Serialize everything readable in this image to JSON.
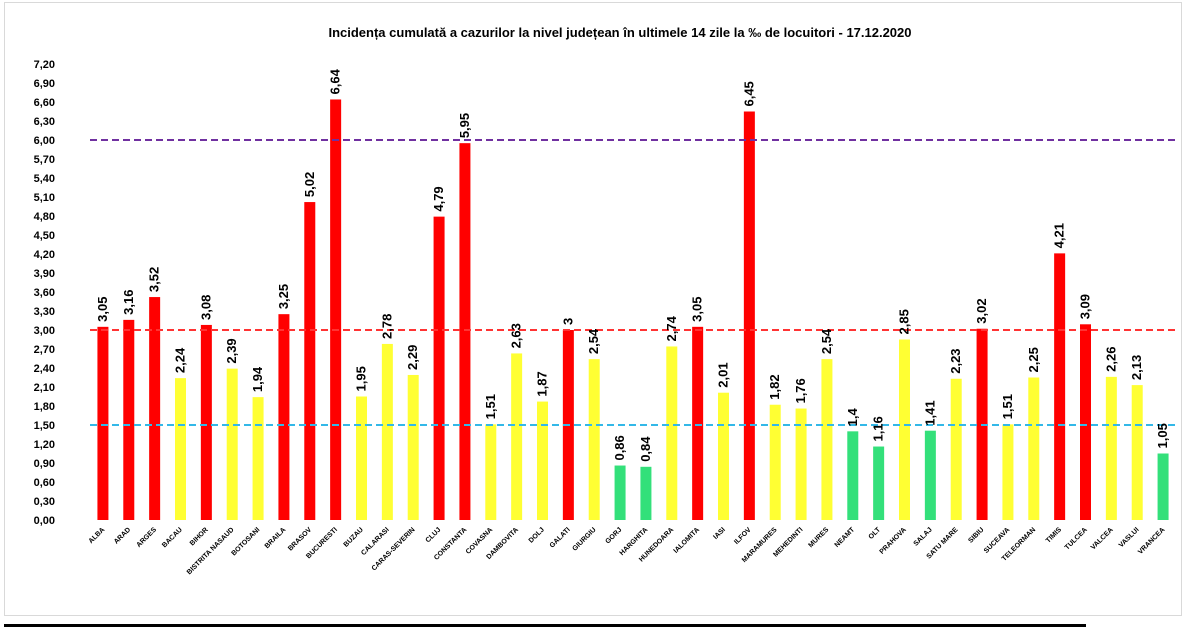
{
  "chart_data": {
    "type": "bar",
    "title": "Incidența cumulată a cazurilor la nivel județean în ultimele 14 zile la ‰ de locuitori - 17.12.2020",
    "xlabel": "",
    "ylabel": "",
    "ylim": [
      0,
      7.2
    ],
    "ytick_step": 0.3,
    "ytick_labels": [
      "0,00",
      "0,30",
      "0,60",
      "0,90",
      "1,20",
      "1,50",
      "1,80",
      "2,10",
      "2,40",
      "2,70",
      "3,00",
      "3,30",
      "3,60",
      "3,90",
      "4,20",
      "4,50",
      "4,80",
      "5,10",
      "5,40",
      "5,70",
      "6,00",
      "6,30",
      "6,60",
      "6,90",
      "7,20"
    ],
    "grid": false,
    "legend": "none",
    "categories": [
      "ALBA",
      "ARAD",
      "ARGES",
      "BACAU",
      "BIHOR",
      "BISTRITA NASAUD",
      "BOTOSANI",
      "BRAILA",
      "BRASOV",
      "BUCURESTI",
      "BUZAU",
      "CALARASI",
      "CARAS-SEVERIN",
      "CLUJ",
      "CONSTANTA",
      "COVASNA",
      "DAMBOVITA",
      "DOLJ",
      "GALATI",
      "GIURGIU",
      "GORJ",
      "HARGHITA",
      "HUNEDOARA",
      "IALOMITA",
      "IASI",
      "ILFOV",
      "MARAMURES",
      "MEHEDINTI",
      "MURES",
      "NEAMT",
      "OLT",
      "PRAHOVA",
      "SALAJ",
      "SATU MARE",
      "SIBIU",
      "SUCEAVA",
      "TELEORMAN",
      "TIMIS",
      "TULCEA",
      "VALCEA",
      "VASLUI",
      "VRANCEA"
    ],
    "values": [
      3.05,
      3.16,
      3.52,
      2.24,
      3.08,
      2.39,
      1.94,
      3.25,
      5.02,
      6.64,
      1.95,
      2.78,
      2.29,
      4.79,
      5.95,
      1.51,
      2.63,
      1.87,
      3,
      2.54,
      0.86,
      0.84,
      2.74,
      3.05,
      2.01,
      6.45,
      1.82,
      1.76,
      2.54,
      1.4,
      1.16,
      2.85,
      1.41,
      2.23,
      3.02,
      1.51,
      2.25,
      4.21,
      3.09,
      2.26,
      2.13,
      1.05
    ],
    "data_labels": [
      "3,05",
      "3,16",
      "3,52",
      "2,24",
      "3,08",
      "2,39",
      "1,94",
      "3,25",
      "5,02",
      "6,64",
      "1,95",
      "2,78",
      "2,29",
      "4,79",
      "5,95",
      "1,51",
      "2,63",
      "1,87",
      "3",
      "2,54",
      "0,86",
      "0,84",
      "2,74",
      "3,05",
      "2,01",
      "6,45",
      "1,82",
      "1,76",
      "2,54",
      "1,4",
      "1,16",
      "2,85",
      "1,41",
      "2,23",
      "3,02",
      "1,51",
      "2,25",
      "4,21",
      "3,09",
      "2,26",
      "2,13",
      "1,05"
    ],
    "bar_colors": [
      "#ff0000",
      "#ff0000",
      "#ff0000",
      "#ffff33",
      "#ff0000",
      "#ffff33",
      "#ffff33",
      "#ff0000",
      "#ff0000",
      "#ff0000",
      "#ffff33",
      "#ffff33",
      "#ffff33",
      "#ff0000",
      "#ff0000",
      "#ffff33",
      "#ffff33",
      "#ffff33",
      "#ff0000",
      "#ffff33",
      "#33e07a",
      "#33e07a",
      "#ffff33",
      "#ff0000",
      "#ffff33",
      "#ff0000",
      "#ffff33",
      "#ffff33",
      "#ffff33",
      "#33e07a",
      "#33e07a",
      "#ffff33",
      "#33e07a",
      "#ffff33",
      "#ff0000",
      "#ffff33",
      "#ffff33",
      "#ff0000",
      "#ff0000",
      "#ffff33",
      "#ffff33",
      "#33e07a"
    ],
    "reference_lines": [
      {
        "value": 6.0,
        "color": "#7030a0"
      },
      {
        "value": 3.0,
        "color": "#ff3333"
      },
      {
        "value": 1.5,
        "color": "#33b8e8"
      }
    ]
  }
}
